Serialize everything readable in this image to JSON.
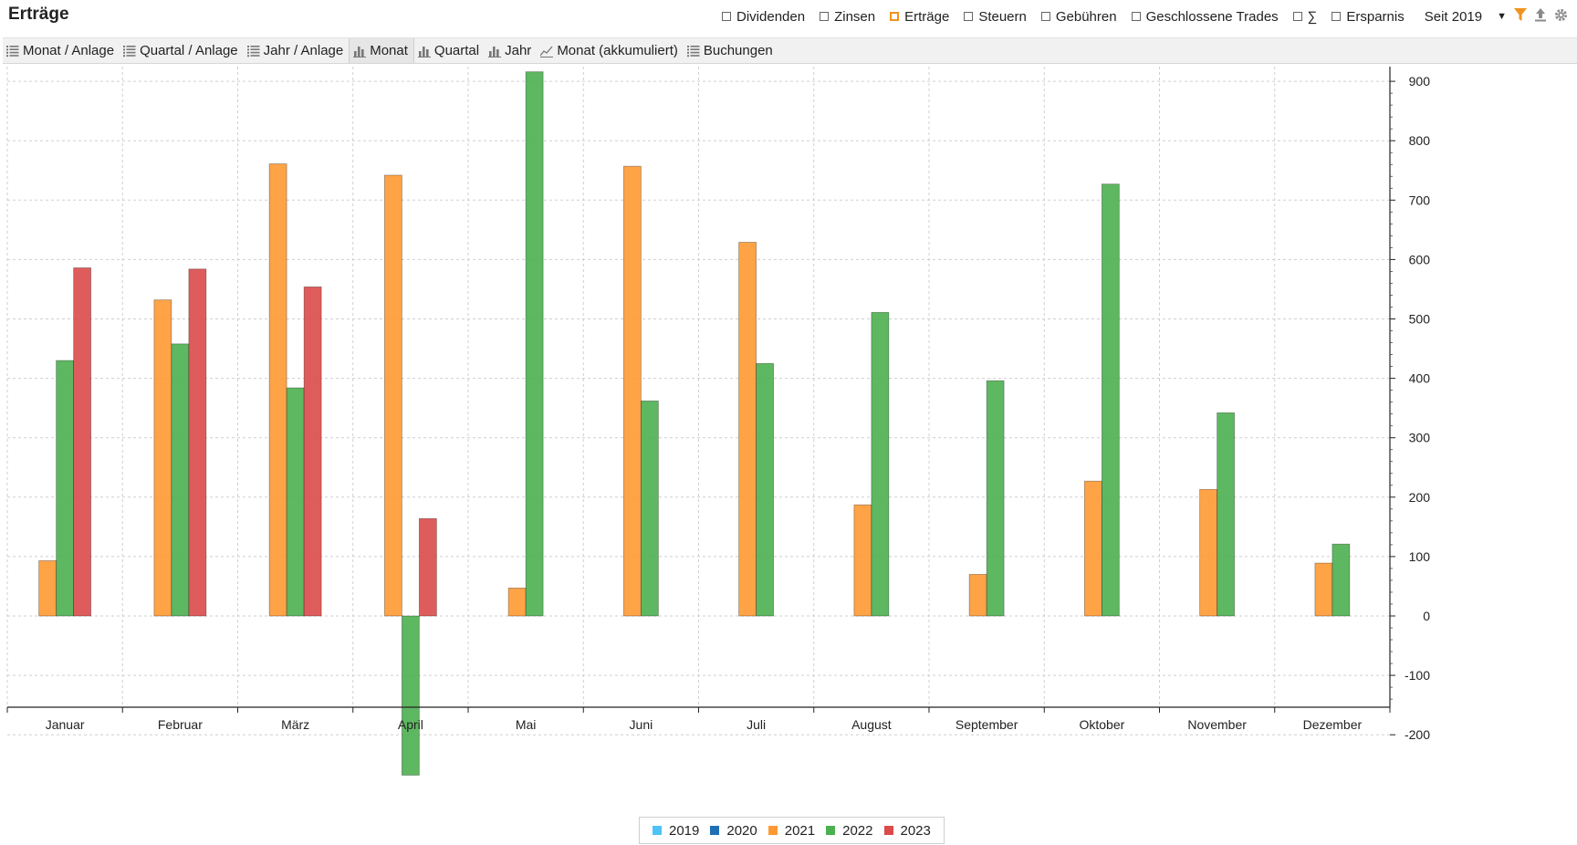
{
  "header": {
    "title": "Erträge",
    "filters": [
      {
        "label": "Dividenden",
        "checked": false
      },
      {
        "label": "Zinsen",
        "checked": false
      },
      {
        "label": "Erträge",
        "checked": true
      },
      {
        "label": "Steuern",
        "checked": false
      },
      {
        "label": "Gebühren",
        "checked": false
      },
      {
        "label": "Geschlossene Trades",
        "checked": false
      },
      {
        "label": "∑",
        "checked": false
      },
      {
        "label": "Ersparnis",
        "checked": false
      }
    ],
    "period": "Seit 2019"
  },
  "tabs": [
    {
      "label": "Monat / Anlage",
      "icon": "list-icon",
      "active": false
    },
    {
      "label": "Quartal / Anlage",
      "icon": "list-icon",
      "active": false
    },
    {
      "label": "Jahr / Anlage",
      "icon": "list-icon",
      "active": false
    },
    {
      "label": "Monat",
      "icon": "bar-chart-icon",
      "active": true
    },
    {
      "label": "Quartal",
      "icon": "bar-chart-icon",
      "active": false
    },
    {
      "label": "Jahr",
      "icon": "bar-chart-icon",
      "active": false
    },
    {
      "label": "Monat (akkumuliert)",
      "icon": "line-chart-icon",
      "active": false
    },
    {
      "label": "Buchungen",
      "icon": "list-icon",
      "active": false
    }
  ],
  "chart_data": {
    "type": "bar",
    "categories": [
      "Januar",
      "Februar",
      "März",
      "April",
      "Mai",
      "Juni",
      "Juli",
      "August",
      "September",
      "Oktober",
      "November",
      "Dezember"
    ],
    "series": [
      {
        "name": "2019",
        "color": "#4fc3f7",
        "values": [
          null,
          null,
          null,
          null,
          null,
          null,
          null,
          null,
          null,
          null,
          null,
          null
        ]
      },
      {
        "name": "2020",
        "color": "#1f6fb5",
        "values": [
          null,
          null,
          null,
          null,
          null,
          null,
          null,
          null,
          null,
          null,
          null,
          null
        ]
      },
      {
        "name": "2021",
        "color": "#ff9933",
        "values": [
          93,
          532,
          761,
          742,
          47,
          757,
          629,
          187,
          70,
          227,
          213,
          89
        ]
      },
      {
        "name": "2022",
        "color": "#4caf50",
        "values": [
          430,
          458,
          384,
          -268,
          916,
          362,
          425,
          511,
          396,
          727,
          342,
          121
        ]
      },
      {
        "name": "2023",
        "color": "#dc4a4a",
        "values": [
          586,
          584,
          554,
          164,
          null,
          null,
          null,
          null,
          null,
          null,
          null,
          null
        ]
      }
    ],
    "yticks": [
      900,
      800,
      700,
      600,
      500,
      400,
      300,
      200,
      100,
      0,
      -100,
      -200
    ],
    "ylim": [
      -277,
      928
    ],
    "grid": true,
    "y_axis_position": "right",
    "legend_position": "bottom-center"
  }
}
